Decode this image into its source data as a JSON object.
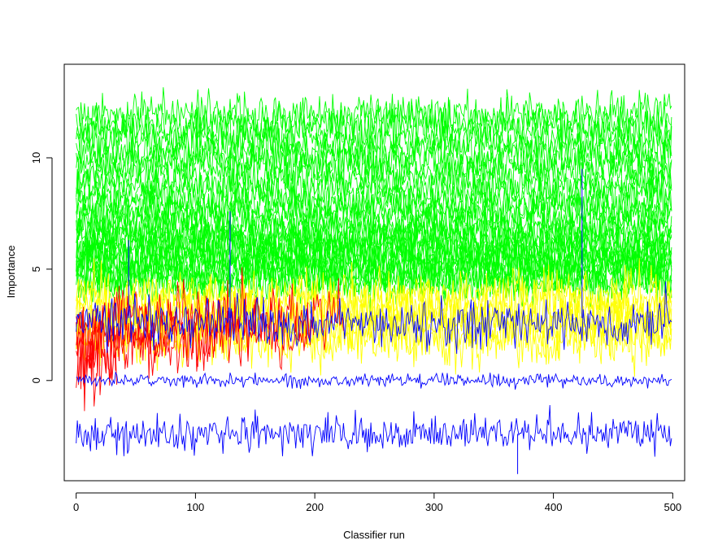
{
  "chart_data": {
    "type": "line",
    "xlabel": "Classifier run",
    "ylabel": "Importance",
    "xlim": [
      -10,
      510
    ],
    "ylim": [
      -4.5,
      14.2
    ],
    "x_ticks": [
      0,
      100,
      200,
      300,
      400,
      500
    ],
    "y_ticks": [
      0,
      5,
      10
    ],
    "x_tick_labels": [
      "0",
      "100",
      "200",
      "300",
      "400",
      "500"
    ],
    "y_tick_labels": [
      "0",
      "5",
      "10"
    ],
    "grid": false,
    "legend": "none",
    "runs": 500,
    "series": [
      {
        "group": "confirmed",
        "color": "#00ff00",
        "mean": 12.0,
        "sd": 0.45
      },
      {
        "group": "confirmed",
        "color": "#00ff00",
        "mean": 11.6,
        "sd": 0.45
      },
      {
        "group": "confirmed",
        "color": "#00ff00",
        "mean": 11.2,
        "sd": 0.45
      },
      {
        "group": "confirmed",
        "color": "#00ff00",
        "mean": 10.8,
        "sd": 0.45
      },
      {
        "group": "confirmed",
        "color": "#00ff00",
        "mean": 10.4,
        "sd": 0.45
      },
      {
        "group": "confirmed",
        "color": "#00ff00",
        "mean": 10.0,
        "sd": 0.45
      },
      {
        "group": "confirmed",
        "color": "#00ff00",
        "mean": 9.6,
        "sd": 0.45
      },
      {
        "group": "confirmed",
        "color": "#00ff00",
        "mean": 9.2,
        "sd": 0.45
      },
      {
        "group": "confirmed",
        "color": "#00ff00",
        "mean": 8.8,
        "sd": 0.45
      },
      {
        "group": "confirmed",
        "color": "#00ff00",
        "mean": 8.4,
        "sd": 0.45
      },
      {
        "group": "confirmed",
        "color": "#00ff00",
        "mean": 8.0,
        "sd": 0.45
      },
      {
        "group": "confirmed",
        "color": "#00ff00",
        "mean": 7.7,
        "sd": 0.45
      },
      {
        "group": "confirmed",
        "color": "#00ff00",
        "mean": 7.4,
        "sd": 0.45
      },
      {
        "group": "confirmed",
        "color": "#00ff00",
        "mean": 7.1,
        "sd": 0.45
      },
      {
        "group": "confirmed",
        "color": "#00ff00",
        "mean": 6.8,
        "sd": 0.45
      },
      {
        "group": "confirmed",
        "color": "#00ff00",
        "mean": 6.5,
        "sd": 0.45
      },
      {
        "group": "confirmed",
        "color": "#00ff00",
        "mean": 6.3,
        "sd": 0.45
      },
      {
        "group": "confirmed",
        "color": "#00ff00",
        "mean": 6.1,
        "sd": 0.45
      },
      {
        "group": "confirmed",
        "color": "#00ff00",
        "mean": 5.9,
        "sd": 0.45
      },
      {
        "group": "confirmed",
        "color": "#00ff00",
        "mean": 5.7,
        "sd": 0.45
      },
      {
        "group": "confirmed",
        "color": "#00ff00",
        "mean": 5.5,
        "sd": 0.45
      },
      {
        "group": "confirmed",
        "color": "#00ff00",
        "mean": 5.3,
        "sd": 0.45
      },
      {
        "group": "confirmed",
        "color": "#00ff00",
        "mean": 5.1,
        "sd": 0.45
      },
      {
        "group": "confirmed",
        "color": "#00ff00",
        "mean": 4.9,
        "sd": 0.45
      },
      {
        "group": "confirmed",
        "color": "#00ff00",
        "mean": 4.7,
        "sd": 0.45
      },
      {
        "group": "confirmed",
        "color": "#00ff00",
        "mean": 4.5,
        "sd": 0.45
      },
      {
        "group": "confirmed",
        "color": "#00ff00",
        "mean": 4.3,
        "sd": 0.45
      },
      {
        "group": "tentative",
        "color": "#ffff00",
        "mean": 3.8,
        "sd": 0.6
      },
      {
        "group": "tentative",
        "color": "#ffff00",
        "mean": 3.4,
        "sd": 0.6
      },
      {
        "group": "tentative",
        "color": "#ffff00",
        "mean": 3.0,
        "sd": 0.6
      },
      {
        "group": "tentative",
        "color": "#ffff00",
        "mean": 2.6,
        "sd": 0.6
      },
      {
        "group": "tentative",
        "color": "#ffff00",
        "mean": 2.2,
        "sd": 0.6
      },
      {
        "group": "tentative",
        "color": "#ffff00",
        "mean": 1.8,
        "sd": 0.6
      },
      {
        "group": "rejected",
        "color": "#ff0000",
        "mean": 2.8,
        "sd": 0.7,
        "x_end": 225
      },
      {
        "group": "rejected",
        "color": "#ff0000",
        "mean": 2.2,
        "sd": 0.7,
        "x_end": 200
      },
      {
        "group": "rejected",
        "color": "#ff0000",
        "mean": 1.6,
        "sd": 0.7,
        "x_end": 120
      },
      {
        "group": "rejected",
        "color": "#ff0000",
        "mean": 1.0,
        "sd": 0.8,
        "x_end": 35
      },
      {
        "group": "rejected",
        "color": "#ff0000",
        "mean": 0.6,
        "sd": 0.9,
        "x_end": 18
      },
      {
        "group": "shadow-max",
        "color": "#0000ff",
        "mean": 2.6,
        "sd": 0.55
      },
      {
        "group": "shadow-mean",
        "color": "#0000ff",
        "mean": 0.0,
        "sd": 0.15
      },
      {
        "group": "shadow-min",
        "color": "#0000ff",
        "mean": -2.4,
        "sd": 0.4
      }
    ],
    "spikes": [
      {
        "x": 129,
        "y": 7.6
      },
      {
        "x": 424,
        "y": 9.5
      },
      {
        "x": 44,
        "y": 6.3
      },
      {
        "x": 370,
        "y": -4.2
      }
    ]
  }
}
